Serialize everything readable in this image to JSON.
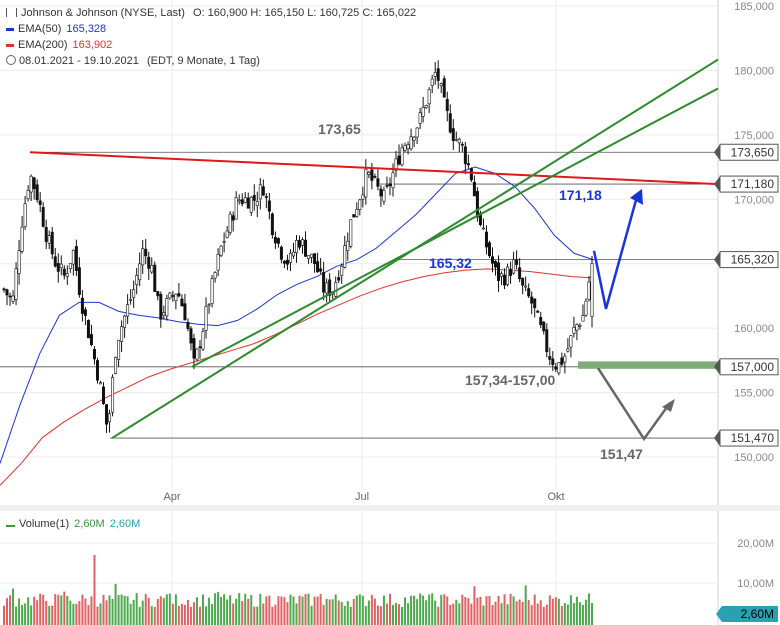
{
  "legend": {
    "title": "Johnson & Johnson (NYSE, Last)",
    "ohlc": "O: 160,900  H: 165,150  L: 160,725  C: 165,022",
    "ema50_label": "EMA(50)",
    "ema50_value": "165,328",
    "ema50_color": "#1a35d6",
    "ema200_label": "EMA(200)",
    "ema200_value": "163,902",
    "ema200_color": "#e0312a",
    "range": "08.01.2021 - 19.10.2021",
    "range_note": "(EDT, 9 Monate, 1 Tag)"
  },
  "volume_legend": {
    "label": "Volume(1)",
    "value1": "2,60M",
    "value2": "2,60M",
    "color1": "#3a9a3a",
    "color2": "#2aa0b0"
  },
  "chart_data": {
    "type": "candlestick",
    "y_axis": {
      "min": 147,
      "max": 186,
      "ticks": [
        150,
        155,
        160,
        165,
        170,
        175,
        180,
        185
      ],
      "tick_labels": [
        "150,000",
        "155,000",
        "160,000",
        "165,000",
        "170,000",
        "175,000",
        "180,000",
        "185,000"
      ]
    },
    "x_ticks": [
      "Apr",
      "Jul",
      "Okt"
    ],
    "levels": [
      {
        "label": "173,650",
        "value": 173.65
      },
      {
        "label": "171,180",
        "value": 171.18
      },
      {
        "label": "165,320",
        "value": 165.32
      },
      {
        "label": "157,000",
        "value": 157.0
      },
      {
        "label": "151,470",
        "value": 151.47
      }
    ],
    "annotations": [
      {
        "text": "173,65",
        "color": "#666666"
      },
      {
        "text": "171,18",
        "color": "#1a35d6"
      },
      {
        "text": "165,32",
        "color": "#1a35d6"
      },
      {
        "text": "157,34-157,00",
        "color": "#666666"
      },
      {
        "text": "151,47",
        "color": "#666666"
      }
    ],
    "price_path": [
      [
        163,
        163
      ],
      [
        163.5,
        162
      ],
      [
        164,
        168
      ],
      [
        165,
        172
      ],
      [
        166,
        170
      ],
      [
        167,
        167
      ],
      [
        165,
        165
      ],
      [
        163,
        164
      ],
      [
        164,
        166
      ],
      [
        162,
        162
      ],
      [
        163,
        159
      ],
      [
        161,
        156
      ],
      [
        153,
        152
      ],
      [
        156,
        159
      ],
      [
        162,
        161
      ],
      [
        164,
        163
      ],
      [
        165,
        166
      ],
      [
        164,
        165
      ],
      [
        163,
        161
      ],
      [
        161,
        162
      ],
      [
        163,
        163
      ],
      [
        164,
        161
      ],
      [
        162,
        157
      ],
      [
        158,
        160
      ],
      [
        161,
        163
      ],
      [
        163,
        166
      ],
      [
        166,
        168
      ],
      [
        168,
        170
      ],
      [
        169,
        170
      ],
      [
        171,
        170
      ],
      [
        172,
        171
      ],
      [
        170,
        168
      ],
      [
        167,
        166
      ],
      [
        165,
        165
      ],
      [
        166,
        167
      ],
      [
        168,
        166
      ],
      [
        166,
        165
      ],
      [
        164,
        163
      ],
      [
        163,
        163
      ],
      [
        164,
        165
      ],
      [
        167,
        168
      ],
      [
        169,
        170
      ],
      [
        171,
        172
      ],
      [
        172,
        171
      ],
      [
        171,
        170
      ],
      [
        171,
        172
      ],
      [
        173,
        174
      ],
      [
        174,
        175
      ],
      [
        175,
        176
      ],
      [
        176,
        178
      ],
      [
        178,
        180
      ],
      [
        180,
        177
      ],
      [
        177,
        175
      ],
      [
        175,
        174
      ],
      [
        174,
        172
      ],
      [
        170,
        168
      ],
      [
        168,
        166
      ],
      [
        166,
        164
      ],
      [
        164,
        164
      ],
      [
        164,
        165
      ],
      [
        165,
        163
      ],
      [
        163,
        162
      ],
      [
        162,
        160
      ],
      [
        160,
        158
      ],
      [
        158,
        157
      ],
      [
        157,
        158
      ],
      [
        158,
        160
      ],
      [
        160,
        161
      ],
      [
        160.9,
        165.02
      ]
    ],
    "ema50": [
      149.5,
      154,
      158,
      161,
      162,
      162,
      161.3,
      161,
      160.8,
      160.5,
      160.3,
      160.2,
      160.6,
      161.5,
      162.6,
      163.4,
      164,
      164.8,
      165.3,
      166.2,
      167.5,
      168.8,
      170.4,
      172,
      172.5,
      172,
      171,
      169.3,
      167.2,
      165.8,
      165.3
    ],
    "ema200": [
      147.8,
      149.5,
      151.5,
      152.7,
      153.7,
      154.6,
      155.4,
      156.2,
      156.8,
      157.3,
      157.8,
      158.3,
      158.8,
      159.5,
      160.3,
      161.1,
      161.8,
      162.5,
      163.1,
      163.6,
      164.0,
      164.3,
      164.5,
      164.6,
      164.5,
      164.4,
      164.2,
      164.0,
      163.9
    ],
    "volume_axis": {
      "ticks": [
        "20,00M",
        "10,00M"
      ],
      "last": "2,60M"
    }
  }
}
